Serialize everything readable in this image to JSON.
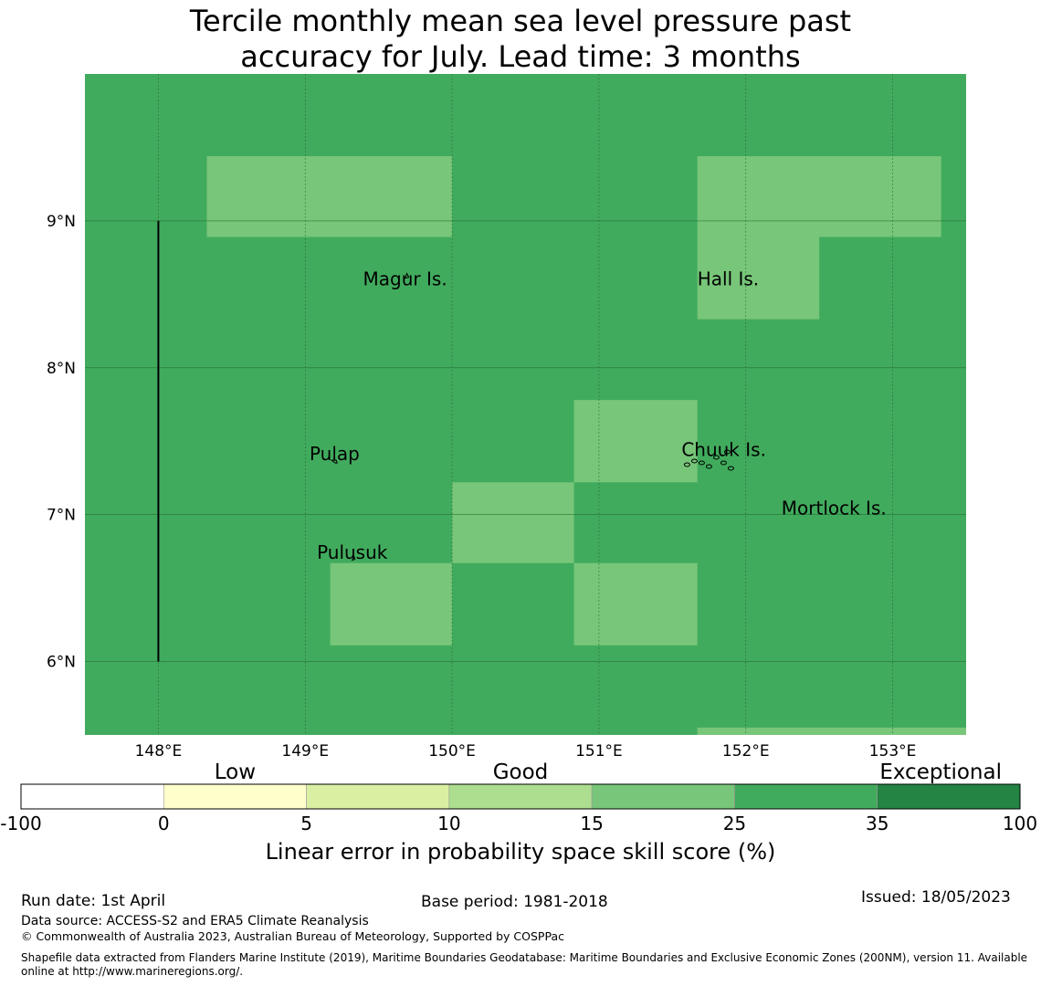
{
  "title": {
    "line1": "Tercile monthly mean sea level pressure past",
    "line2": "accuracy for July. Lead time: 3 months"
  },
  "map": {
    "lon_range": [
      147.5,
      153.5
    ],
    "lat_range": [
      5.5,
      10.0
    ],
    "background_color": "#41ab5d",
    "lon_ticks": [
      {
        "value": 148,
        "label": "148°E"
      },
      {
        "value": 149,
        "label": "149°E"
      },
      {
        "value": 150,
        "label": "150°E"
      },
      {
        "value": 151,
        "label": "151°E"
      },
      {
        "value": 152,
        "label": "152°E"
      },
      {
        "value": 153,
        "label": "153°E"
      }
    ],
    "lat_ticks": [
      {
        "value": 9,
        "label": "9°N"
      },
      {
        "value": 8,
        "label": "8°N"
      },
      {
        "value": 7,
        "label": "7°N"
      },
      {
        "value": 6,
        "label": "6°N"
      }
    ],
    "cells_15_25": [
      {
        "lon": [
          148.33,
          150.0
        ],
        "lat": [
          8.89,
          9.44
        ]
      },
      {
        "lon": [
          151.67,
          153.33
        ],
        "lat": [
          8.89,
          9.44
        ]
      },
      {
        "lon": [
          151.67,
          152.5
        ],
        "lat": [
          8.33,
          8.89
        ]
      },
      {
        "lon": [
          150.83,
          151.67
        ],
        "lat": [
          7.22,
          7.78
        ]
      },
      {
        "lon": [
          150.0,
          150.83
        ],
        "lat": [
          6.67,
          7.22
        ]
      },
      {
        "lon": [
          149.17,
          150.0
        ],
        "lat": [
          6.11,
          6.67
        ]
      },
      {
        "lon": [
          150.83,
          151.67
        ],
        "lat": [
          6.11,
          6.67
        ]
      },
      {
        "lon": [
          151.67,
          153.5
        ],
        "lat": [
          5.5,
          5.55
        ]
      }
    ],
    "boundary_line": {
      "lon": 148.0,
      "lat": [
        6.0,
        9.0
      ]
    },
    "places": [
      {
        "name": "Magur Is.",
        "lon": 149.68,
        "lat": 8.56
      },
      {
        "name": "Hall Is.",
        "lon": 151.88,
        "lat": 8.56
      },
      {
        "name": "Pulap",
        "lon": 149.2,
        "lat": 7.37
      },
      {
        "name": "Chuuk Is.",
        "lon": 151.85,
        "lat": 7.4
      },
      {
        "name": "Mortlock Is.",
        "lon": 152.6,
        "lat": 7.0
      },
      {
        "name": "Pulusuk",
        "lon": 149.32,
        "lat": 6.7
      }
    ]
  },
  "colorbar": {
    "title": "Linear error in probability space skill score (%)",
    "tick_labels": [
      "-100",
      "0",
      "5",
      "10",
      "15",
      "25",
      "35",
      "100"
    ],
    "colors": [
      "#ffffff",
      "#ffffcc",
      "#d9f0a3",
      "#addd8e",
      "#78c679",
      "#41ab5d",
      "#238443"
    ],
    "categories": [
      {
        "label": "Low"
      },
      {
        "label": "Good"
      },
      {
        "label": "Exceptional"
      }
    ]
  },
  "footer": {
    "run_date": "Run date: 1st April",
    "base_period": "Base period: 1981-2018",
    "issued": "Issued: 18/05/2023",
    "data_source": "Data source: ACCESS-S2 and ERA5 Climate Reanalysis",
    "copyright": "© Commonwealth of Australia 2023, Australian Bureau of Meteorology, Supported by COSPPac",
    "shapefile_line1": "Shapefile data extracted from Flanders Marine Institute (2019), Maritime Boundaries Geodatabase: Maritime Boundaries and Exclusive Economic Zones (200NM), version 11. Available",
    "shapefile_line2": "online at http://www.marineregions.org/."
  }
}
